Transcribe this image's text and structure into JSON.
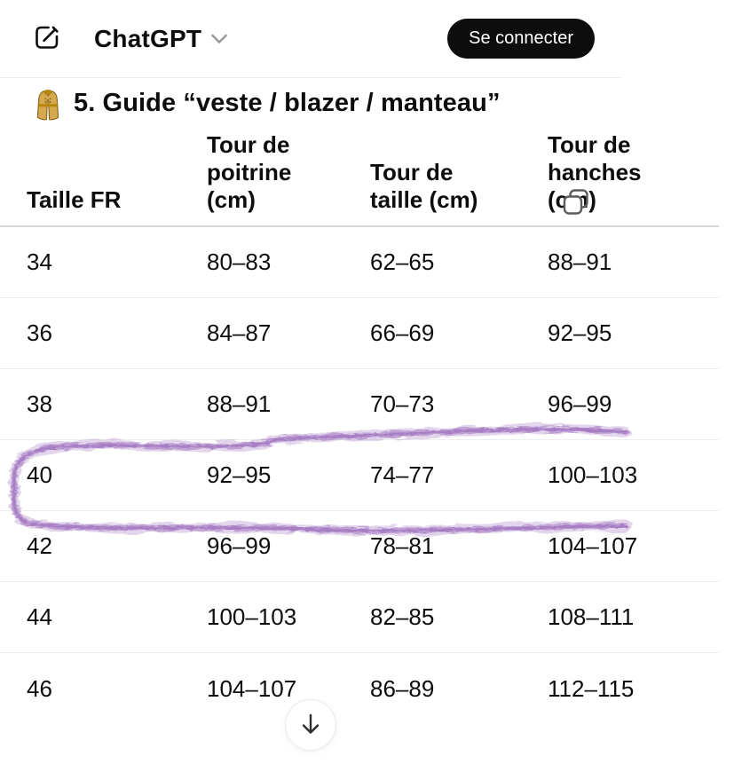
{
  "nav": {
    "app_name": "ChatGPT",
    "login_label": "Se connecter"
  },
  "title": {
    "emoji": "trench-coat",
    "text": "5. Guide “veste / blazer / manteau”"
  },
  "table": {
    "columns": [
      "Taille FR",
      "Tour de poitrine (cm)",
      "Tour de taille (cm)",
      "Tour de hanches (cm)"
    ],
    "rows": [
      [
        "34",
        "80–83",
        "62–65",
        "88–91"
      ],
      [
        "36",
        "84–87",
        "66–69",
        "92–95"
      ],
      [
        "38",
        "88–91",
        "70–73",
        "96–99"
      ],
      [
        "40",
        "92–95",
        "74–77",
        "100–103"
      ],
      [
        "42",
        "96–99",
        "78–81",
        "104–107"
      ],
      [
        "44",
        "100–103",
        "82–85",
        "108–111"
      ],
      [
        "46",
        "104–107",
        "86–89",
        "112–115"
      ]
    ]
  },
  "annotation": {
    "type": "hand-drawn-marker-circle",
    "around_row": "40",
    "color": "#a478c2"
  },
  "icons": {
    "compose": "new-chat-pencil-square",
    "chevron": "chevron-down",
    "copy": "copy-table",
    "scroll": "arrow-down"
  },
  "colors": {
    "text": "#0d0d0d",
    "login_button_bg": "#0d0d0d",
    "row_separator": "#eeeeee",
    "header_separator": "#d6d6d6",
    "annotation_purple": "#a478c2"
  }
}
